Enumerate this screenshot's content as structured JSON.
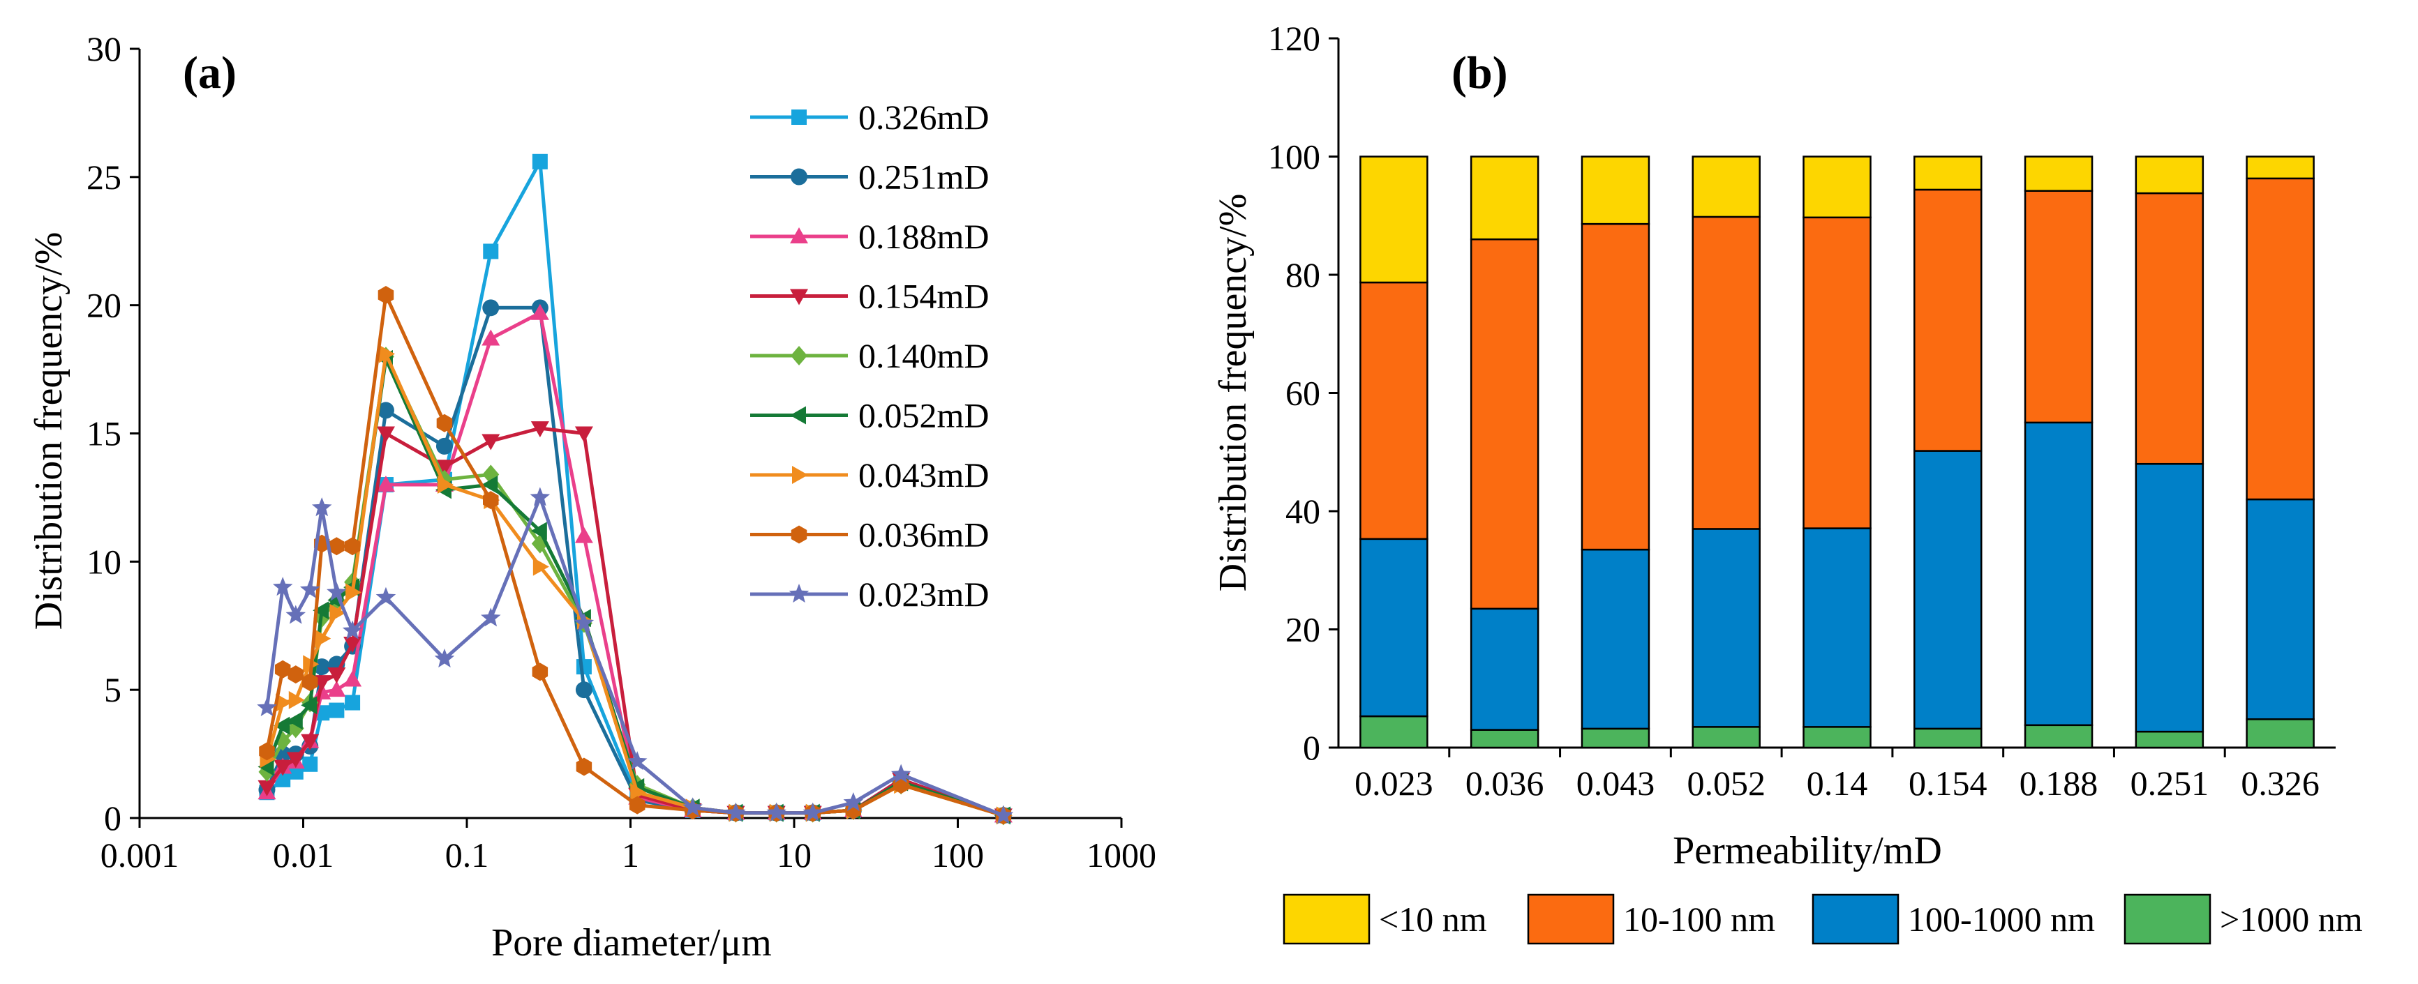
{
  "chart_data": [
    {
      "id": "a",
      "type": "line",
      "panel_label": "(a)",
      "xlabel": "Pore diameter/μm",
      "ylabel": "Distribution frequency/%",
      "xscale": "log",
      "xlim": [
        0.001,
        1000
      ],
      "ylim": [
        0,
        30
      ],
      "xticks": [
        0.001,
        0.01,
        0.1,
        1,
        10,
        100,
        1000
      ],
      "xtick_labels": [
        "0.001",
        "0.01",
        "0.1",
        "1",
        "10",
        "100",
        "1000"
      ],
      "yticks": [
        0,
        5,
        10,
        15,
        20,
        25,
        30
      ],
      "ytick_labels": [
        "0",
        "5",
        "10",
        "15",
        "20",
        "25",
        "30"
      ],
      "legend_position": "top-right",
      "series": [
        {
          "name": "0.326mD",
          "color": "#17a4dd",
          "marker": "square",
          "x": [
            0.006,
            0.0075,
            0.009,
            0.011,
            0.013,
            0.016,
            0.02,
            0.032,
            0.073,
            0.14,
            0.28,
            0.52,
            1.1,
            2.4,
            4.4,
            7.8,
            13,
            23,
            45,
            190
          ],
          "y": [
            1.0,
            1.5,
            1.8,
            2.1,
            4.1,
            4.2,
            4.5,
            13.0,
            13.2,
            22.1,
            25.6,
            5.9,
            0.8,
            0.3,
            0.2,
            0.2,
            0.2,
            0.3,
            1.5,
            0.1
          ]
        },
        {
          "name": "0.251mD",
          "color": "#1b6e9b",
          "marker": "circle",
          "x": [
            0.006,
            0.0075,
            0.009,
            0.011,
            0.013,
            0.016,
            0.02,
            0.032,
            0.073,
            0.14,
            0.28,
            0.52,
            1.1,
            2.4,
            4.4,
            7.8,
            13,
            23,
            45,
            190
          ],
          "y": [
            1.1,
            2.5,
            2.5,
            2.8,
            5.9,
            6.0,
            6.7,
            15.9,
            14.5,
            19.9,
            19.9,
            5.0,
            0.7,
            0.3,
            0.2,
            0.2,
            0.2,
            0.3,
            1.4,
            0.1
          ]
        },
        {
          "name": "0.188mD",
          "color": "#ea3f8a",
          "marker": "triangle-up",
          "x": [
            0.006,
            0.0075,
            0.009,
            0.011,
            0.013,
            0.016,
            0.02,
            0.032,
            0.073,
            0.14,
            0.28,
            0.52,
            1.1,
            2.4,
            4.4,
            7.8,
            13,
            23,
            45,
            190
          ],
          "y": [
            1.0,
            2.0,
            2.2,
            3.0,
            4.9,
            5.0,
            5.4,
            13.0,
            13.0,
            18.7,
            19.7,
            11.0,
            0.8,
            0.3,
            0.2,
            0.2,
            0.2,
            0.3,
            1.5,
            0.1
          ]
        },
        {
          "name": "0.154mD",
          "color": "#c81e3c",
          "marker": "triangle-down",
          "x": [
            0.006,
            0.0075,
            0.009,
            0.011,
            0.013,
            0.016,
            0.02,
            0.032,
            0.073,
            0.14,
            0.28,
            0.52,
            1.1,
            2.4,
            4.4,
            7.8,
            13,
            23,
            45,
            190
          ],
          "y": [
            1.2,
            2.0,
            2.3,
            3.0,
            5.3,
            5.6,
            6.8,
            15.0,
            13.7,
            14.7,
            15.2,
            15.0,
            0.9,
            0.3,
            0.2,
            0.2,
            0.2,
            0.3,
            1.5,
            0.1
          ]
        },
        {
          "name": "0.140mD",
          "color": "#6db33f",
          "marker": "diamond",
          "x": [
            0.006,
            0.0075,
            0.009,
            0.011,
            0.013,
            0.016,
            0.02,
            0.032,
            0.073,
            0.14,
            0.28,
            0.52,
            1.1,
            2.4,
            4.4,
            7.8,
            13,
            23,
            45,
            190
          ],
          "y": [
            1.8,
            3.0,
            3.5,
            4.5,
            7.8,
            8.5,
            9.2,
            18.0,
            13.2,
            13.4,
            10.7,
            7.6,
            1.3,
            0.4,
            0.2,
            0.2,
            0.2,
            0.3,
            1.3,
            0.1
          ]
        },
        {
          "name": "0.052mD",
          "color": "#157a36",
          "marker": "triangle-left",
          "x": [
            0.006,
            0.0075,
            0.009,
            0.011,
            0.013,
            0.016,
            0.02,
            0.032,
            0.073,
            0.14,
            0.28,
            0.52,
            1.1,
            2.4,
            4.4,
            7.8,
            13,
            23,
            45,
            190
          ],
          "y": [
            2.0,
            3.6,
            3.8,
            4.4,
            8.1,
            8.5,
            9.0,
            17.9,
            12.8,
            13.0,
            11.2,
            7.8,
            1.2,
            0.4,
            0.2,
            0.2,
            0.2,
            0.3,
            1.4,
            0.1
          ]
        },
        {
          "name": "0.043mD",
          "color": "#f08c1e",
          "marker": "triangle-right",
          "x": [
            0.006,
            0.0075,
            0.009,
            0.011,
            0.013,
            0.016,
            0.02,
            0.032,
            0.073,
            0.14,
            0.28,
            0.52,
            1.1,
            2.4,
            4.4,
            7.8,
            13,
            23,
            45,
            190
          ],
          "y": [
            2.3,
            4.5,
            4.6,
            6.0,
            7.0,
            8.0,
            8.8,
            18.1,
            13.0,
            12.4,
            9.8,
            7.7,
            1.0,
            0.4,
            0.2,
            0.2,
            0.2,
            0.3,
            1.3,
            0.1
          ]
        },
        {
          "name": "0.036mD",
          "color": "#d0620e",
          "marker": "hexagon",
          "x": [
            0.006,
            0.0075,
            0.009,
            0.011,
            0.013,
            0.016,
            0.02,
            0.032,
            0.073,
            0.14,
            0.28,
            0.52,
            1.1,
            2.4,
            4.4,
            7.8,
            13,
            23,
            45,
            190
          ],
          "y": [
            2.6,
            5.8,
            5.6,
            5.3,
            10.7,
            10.6,
            10.6,
            20.4,
            15.4,
            12.4,
            5.7,
            2.0,
            0.5,
            0.3,
            0.2,
            0.2,
            0.2,
            0.3,
            1.3,
            0.1
          ]
        },
        {
          "name": "0.023mD",
          "color": "#6670b8",
          "marker": "star",
          "x": [
            0.006,
            0.0075,
            0.009,
            0.011,
            0.013,
            0.016,
            0.02,
            0.032,
            0.073,
            0.14,
            0.28,
            0.52,
            1.1,
            2.4,
            4.4,
            7.8,
            13,
            23,
            45,
            190
          ],
          "y": [
            4.3,
            9.0,
            7.9,
            8.9,
            12.1,
            8.8,
            7.3,
            8.6,
            6.2,
            7.8,
            12.5,
            7.6,
            2.2,
            0.4,
            0.2,
            0.2,
            0.2,
            0.6,
            1.7,
            0.1
          ]
        }
      ]
    },
    {
      "id": "b",
      "type": "bar",
      "stacked": true,
      "panel_label": "(b)",
      "xlabel": "Permeability/mD",
      "ylabel": "Distribution frequency/%",
      "ylim": [
        0,
        120
      ],
      "yticks": [
        0,
        20,
        40,
        60,
        80,
        100,
        120
      ],
      "ytick_labels": [
        "0",
        "20",
        "40",
        "60",
        "80",
        "100",
        "120"
      ],
      "categories": [
        "0.023",
        "0.036",
        "0.043",
        "0.052",
        "0.14",
        "0.154",
        "0.188",
        "0.251",
        "0.326"
      ],
      "legend_position": "bottom",
      "series": [
        {
          "name": ">1000 nm",
          "color": "#4cb45c",
          "values": [
            5.3,
            3.0,
            3.2,
            3.5,
            3.5,
            3.2,
            3.8,
            2.7,
            4.8
          ]
        },
        {
          "name": "100-1000 nm",
          "color": "#0080c8",
          "values": [
            30.0,
            20.5,
            30.3,
            33.5,
            33.6,
            47.0,
            51.2,
            45.3,
            37.2
          ]
        },
        {
          "name": "10-100 nm",
          "color": "#fb6b11",
          "values": [
            43.4,
            62.5,
            55.1,
            52.8,
            52.6,
            44.2,
            39.2,
            45.8,
            54.3
          ]
        },
        {
          "name": "<10 nm",
          "color": "#fdd600",
          "values": [
            21.3,
            14.0,
            11.4,
            10.2,
            10.3,
            5.6,
            5.8,
            6.2,
            3.7
          ]
        }
      ],
      "legend_order": [
        "<10 nm",
        "10-100 nm",
        "100-1000 nm",
        ">1000 nm"
      ]
    }
  ]
}
